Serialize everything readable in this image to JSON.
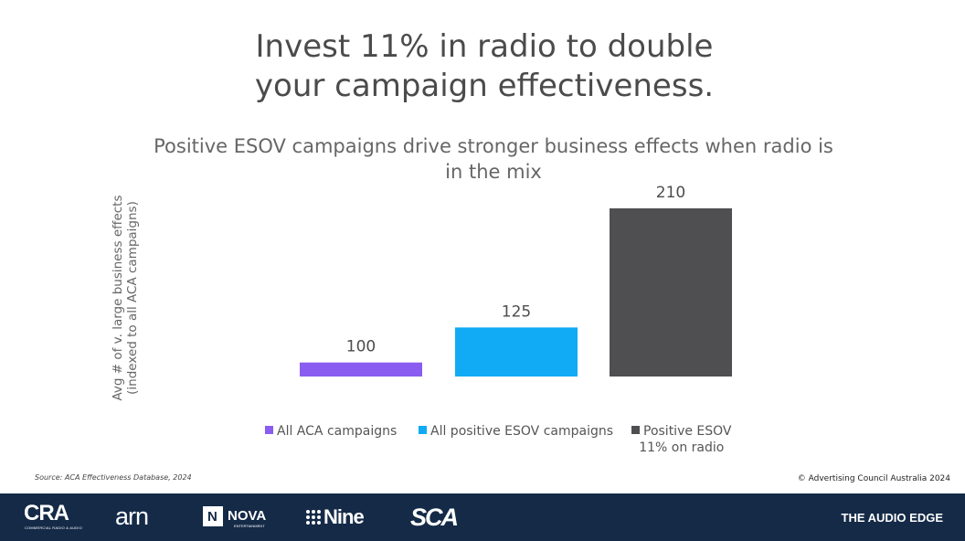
{
  "title": {
    "line1": "Invest 11% in radio to double",
    "line2": "your campaign effectiveness."
  },
  "chart_data": {
    "type": "bar",
    "title": "Positive ESOV campaigns drive stronger business effects when radio is in the mix",
    "ylabel_line1": "Avg # of v. large business effects",
    "ylabel_line2": "(indexed to all ACA campaigns)",
    "categories": [
      "All ACA campaigns",
      "All positive ESOV campaigns",
      "Positive ESOV 11% on radio"
    ],
    "values": [
      100,
      125,
      210
    ],
    "ylim": [
      90,
      215
    ],
    "colors": [
      "#8b5cf0",
      "#11aaf5",
      "#4f4f51"
    ],
    "grid": false,
    "legend_position": "bottom",
    "legend": [
      {
        "label_line1": "All ACA campaigns",
        "label_line2": "",
        "color": "#8b5cf0"
      },
      {
        "label_line1": "All positive ESOV campaigns",
        "label_line2": "",
        "color": "#11aaf5"
      },
      {
        "label_line1": "Positive ESOV",
        "label_line2": "11% on radio",
        "color": "#4f4f51"
      }
    ]
  },
  "source": "Source: ACA Effectiveness Database, 2024",
  "copyright": "© Advertising Council Australia 2024",
  "footer": {
    "logos": [
      "CRA",
      "arn",
      "NOVA",
      "Nine",
      "SCA",
      "THE AUDIO EDGE"
    ],
    "cra_sub": "COMMERCIAL RADIO & AUDIO",
    "nova_sub": "ENTERTAINMENT",
    "bg_color": "#142a47"
  }
}
